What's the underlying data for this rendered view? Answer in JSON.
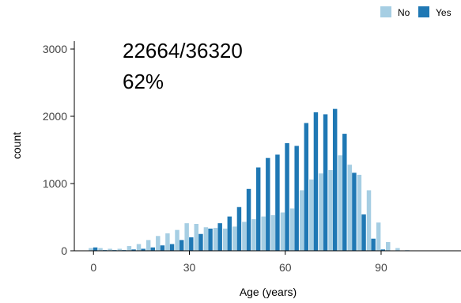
{
  "chart_data": {
    "type": "bar",
    "xlabel": "Age (years)",
    "ylabel": "count",
    "xlim": [
      -6,
      115
    ],
    "ylim": [
      0,
      3000
    ],
    "xticks": [
      0,
      30,
      60,
      90
    ],
    "yticks": [
      0,
      1000,
      2000,
      3000
    ],
    "bin_width": 3,
    "x": [
      0,
      3,
      6,
      9,
      12,
      15,
      18,
      21,
      24,
      27,
      30,
      33,
      36,
      39,
      42,
      45,
      48,
      51,
      54,
      57,
      60,
      63,
      66,
      69,
      72,
      75,
      78,
      81,
      84,
      87,
      90,
      93,
      96,
      99,
      102,
      105
    ],
    "series": [
      {
        "name": "No",
        "color": "#a6cee3",
        "values": [
          40,
          40,
          30,
          30,
          70,
          100,
          160,
          220,
          260,
          310,
          410,
          400,
          350,
          340,
          330,
          360,
          430,
          470,
          510,
          530,
          570,
          630,
          900,
          1060,
          1150,
          1200,
          1420,
          1280,
          1130,
          900,
          420,
          130,
          40,
          10,
          0,
          0
        ]
      },
      {
        "name": "Yes",
        "color": "#1f78b4",
        "values": [
          50,
          10,
          10,
          10,
          20,
          30,
          50,
          80,
          100,
          160,
          200,
          250,
          330,
          410,
          510,
          650,
          920,
          1240,
          1380,
          1430,
          1600,
          1560,
          1900,
          2060,
          2030,
          2110,
          1740,
          1160,
          540,
          180,
          20,
          0,
          0,
          0,
          0,
          0
        ]
      }
    ],
    "legend": {
      "placement": "top-right",
      "entries": [
        "No",
        "Yes"
      ]
    },
    "grid": false,
    "annotations": {
      "ratio": "22664/36320",
      "percent": "62%"
    }
  }
}
